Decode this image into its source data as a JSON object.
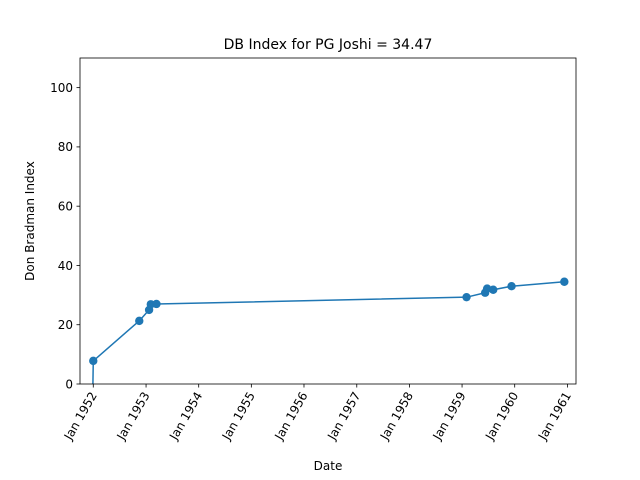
{
  "chart_data": {
    "type": "line",
    "title": "DB Index for PG Joshi = 34.47",
    "xlabel": "Date",
    "ylabel": "Don Bradman Index",
    "x_axis_kind": "date",
    "xlim": [
      "1951-10-01",
      "1961-03-01"
    ],
    "ylim": [
      0,
      110
    ],
    "grid": false,
    "legend": "none",
    "x_ticks": [
      {
        "value": "1952-01-01",
        "label": "Jan 1952"
      },
      {
        "value": "1953-01-01",
        "label": "Jan 1953"
      },
      {
        "value": "1954-01-01",
        "label": "Jan 1954"
      },
      {
        "value": "1955-01-01",
        "label": "Jan 1955"
      },
      {
        "value": "1956-01-01",
        "label": "Jan 1956"
      },
      {
        "value": "1957-01-01",
        "label": "Jan 1957"
      },
      {
        "value": "1958-01-01",
        "label": "Jan 1958"
      },
      {
        "value": "1959-01-01",
        "label": "Jan 1959"
      },
      {
        "value": "1960-01-01",
        "label": "Jan 1960"
      },
      {
        "value": "1961-01-01",
        "label": "Jan 1961"
      }
    ],
    "y_ticks": [
      0,
      20,
      40,
      60,
      80,
      100
    ],
    "series": [
      {
        "color": "#1f77b4",
        "leading_segment": {
          "x": "1951-12-28",
          "y": -5
        },
        "points": [
          {
            "x": "1952-01-01",
            "y": 7.8
          },
          {
            "x": "1952-11-15",
            "y": 21.3
          },
          {
            "x": "1953-01-22",
            "y": 25.0
          },
          {
            "x": "1953-02-03",
            "y": 26.9
          },
          {
            "x": "1953-03-14",
            "y": 27.0
          },
          {
            "x": "1959-02-01",
            "y": 29.3
          },
          {
            "x": "1959-06-10",
            "y": 30.8
          },
          {
            "x": "1959-06-24",
            "y": 32.2
          },
          {
            "x": "1959-08-05",
            "y": 31.8
          },
          {
            "x": "1959-12-10",
            "y": 33.0
          },
          {
            "x": "1960-12-10",
            "y": 34.5
          }
        ]
      }
    ]
  }
}
